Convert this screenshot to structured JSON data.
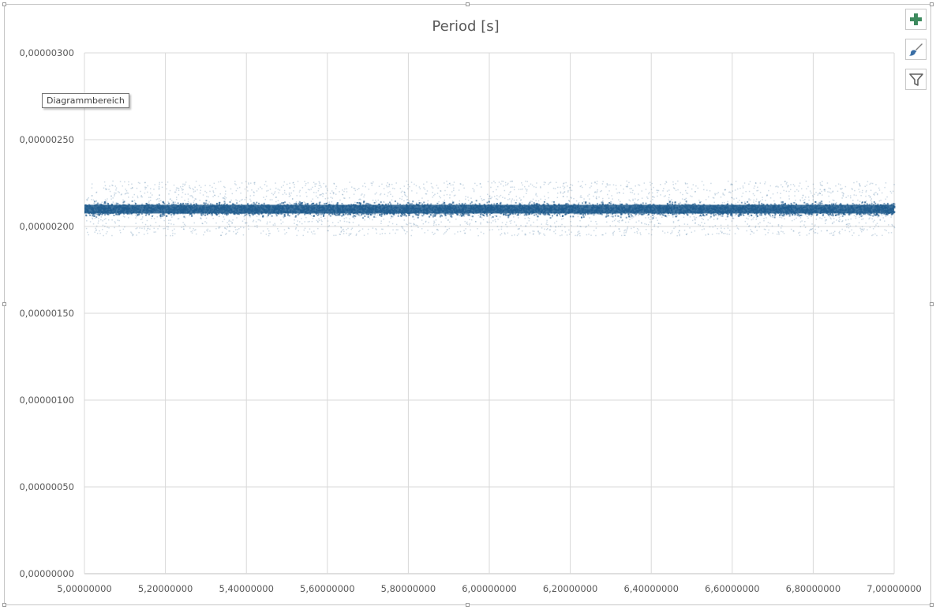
{
  "chart_area": {
    "tooltip": "Diagrammbereich",
    "colors": {
      "series": "#1f5a8c",
      "grid": "#d9d9d9",
      "axis_text": "#595959",
      "title_text": "#595959",
      "button_plus": "#3d8a5e",
      "button_brush": "#3a6ea5",
      "button_filter": "#606060"
    },
    "buttons": {
      "add_elements_icon": "plus-icon",
      "styles_icon": "paintbrush-icon",
      "filters_icon": "filter-icon"
    }
  },
  "chart_data": {
    "type": "scatter",
    "title": "Period [s]",
    "xlabel": "",
    "ylabel": "",
    "xlim": [
      5.0,
      7.0
    ],
    "ylim": [
      0.0,
      3e-06
    ],
    "x_ticks": [
      "5,00000000",
      "5,20000000",
      "5,40000000",
      "5,60000000",
      "5,80000000",
      "6,00000000",
      "6,20000000",
      "6,40000000",
      "6,60000000",
      "6,80000000",
      "7,00000000"
    ],
    "y_ticks": [
      "0,00000000",
      "0,00000050",
      "0,00000100",
      "0,00000150",
      "0,00000200",
      "0,00000250",
      "0,00000300"
    ],
    "grid": true,
    "legend": "none",
    "series": [
      {
        "x_range": [
          5.0,
          7.0
        ],
        "y_center": 2.1e-06,
        "y_dense_band": [
          2.05e-06,
          2.155e-06
        ],
        "y_sparse_band": [
          1.95e-06,
          2.265e-06
        ],
        "note": "dense uniform scatter"
      }
    ]
  }
}
